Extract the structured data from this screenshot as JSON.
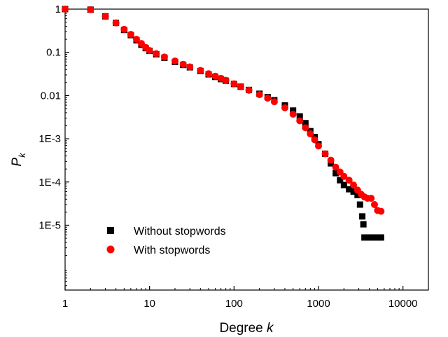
{
  "chart_data": {
    "type": "scatter",
    "title": "",
    "xlabel": "Degree",
    "xlabel_var": "k",
    "ylabel": "P",
    "ylabel_sub": "k",
    "x_scale": "log",
    "y_scale": "log",
    "xlim": [
      1,
      20000
    ],
    "ylim": [
      3.16e-07,
      1
    ],
    "grid": false,
    "legend_position": "bottom-left",
    "x_ticks": [
      {
        "value": 1,
        "label": "1"
      },
      {
        "value": 10,
        "label": "10"
      },
      {
        "value": 100,
        "label": "100"
      },
      {
        "value": 1000,
        "label": "1000"
      },
      {
        "value": 10000,
        "label": "10000"
      }
    ],
    "y_ticks": [
      {
        "value": 1,
        "label": "1"
      },
      {
        "value": 0.1,
        "label": "0.1"
      },
      {
        "value": 0.01,
        "label": "0.01"
      },
      {
        "value": 0.001,
        "label": "1E-3"
      },
      {
        "value": 0.0001,
        "label": "1E-4"
      },
      {
        "value": 1e-05,
        "label": "1E-5"
      }
    ],
    "series": [
      {
        "name": "Without stopwords",
        "marker": "square",
        "color": "#000000",
        "points": [
          [
            1,
            1.0
          ],
          [
            2,
            0.97
          ],
          [
            3,
            0.68
          ],
          [
            4,
            0.48
          ],
          [
            5,
            0.33
          ],
          [
            6,
            0.25
          ],
          [
            7,
            0.19
          ],
          [
            8,
            0.15
          ],
          [
            9,
            0.125
          ],
          [
            10,
            0.108
          ],
          [
            12,
            0.09
          ],
          [
            15,
            0.075
          ],
          [
            20,
            0.06
          ],
          [
            25,
            0.051
          ],
          [
            30,
            0.045
          ],
          [
            40,
            0.037
          ],
          [
            50,
            0.031
          ],
          [
            60,
            0.027
          ],
          [
            70,
            0.024
          ],
          [
            80,
            0.022
          ],
          [
            100,
            0.0185
          ],
          [
            120,
            0.016
          ],
          [
            150,
            0.0135
          ],
          [
            200,
            0.011
          ],
          [
            250,
            0.0092
          ],
          [
            300,
            0.0078
          ],
          [
            400,
            0.0059
          ],
          [
            500,
            0.0045
          ],
          [
            600,
            0.0033
          ],
          [
            700,
            0.0023
          ],
          [
            800,
            0.0015
          ],
          [
            900,
            0.0011
          ],
          [
            1000,
            0.00075
          ],
          [
            1200,
            0.00045
          ],
          [
            1400,
            0.00027
          ],
          [
            1600,
            0.00016
          ],
          [
            1800,
            0.00011
          ],
          [
            2000,
            8.5e-05
          ],
          [
            2300,
            6.8e-05
          ],
          [
            2600,
            6e-05
          ],
          [
            2900,
            5e-05
          ],
          [
            3100,
            3e-05
          ],
          [
            3300,
            1.6e-05
          ],
          [
            3400,
            1.05e-05
          ],
          [
            3500,
            5.2e-06
          ],
          [
            4000,
            5.2e-06
          ],
          [
            4500,
            5.2e-06
          ],
          [
            5000,
            5.2e-06
          ],
          [
            5500,
            5.2e-06
          ]
        ]
      },
      {
        "name": "With stopwords",
        "marker": "circle",
        "color": "#ff0000",
        "points": [
          [
            1,
            1.0
          ],
          [
            2,
            0.97
          ],
          [
            3,
            0.68
          ],
          [
            4,
            0.48
          ],
          [
            5,
            0.34
          ],
          [
            6,
            0.26
          ],
          [
            7,
            0.2
          ],
          [
            8,
            0.16
          ],
          [
            9,
            0.13
          ],
          [
            10,
            0.11
          ],
          [
            12,
            0.093
          ],
          [
            15,
            0.078
          ],
          [
            20,
            0.063
          ],
          [
            25,
            0.053
          ],
          [
            30,
            0.046
          ],
          [
            40,
            0.038
          ],
          [
            50,
            0.032
          ],
          [
            60,
            0.028
          ],
          [
            70,
            0.025
          ],
          [
            80,
            0.0225
          ],
          [
            100,
            0.0187
          ],
          [
            120,
            0.016
          ],
          [
            150,
            0.0133
          ],
          [
            200,
            0.0105
          ],
          [
            250,
            0.0087
          ],
          [
            300,
            0.0072
          ],
          [
            400,
            0.0052
          ],
          [
            500,
            0.0037
          ],
          [
            600,
            0.0026
          ],
          [
            700,
            0.0018
          ],
          [
            800,
            0.0013
          ],
          [
            900,
            0.00095
          ],
          [
            1000,
            0.00068
          ],
          [
            1200,
            0.00045
          ],
          [
            1400,
            0.00032
          ],
          [
            1600,
            0.00022
          ],
          [
            1800,
            0.00017
          ],
          [
            2000,
            0.000135
          ],
          [
            2300,
            0.00011
          ],
          [
            2600,
            8.5e-05
          ],
          [
            2900,
            6.5e-05
          ],
          [
            3200,
            5.2e-05
          ],
          [
            3500,
            4.5e-05
          ],
          [
            3800,
            4.2e-05
          ],
          [
            4200,
            4.2e-05
          ],
          [
            4600,
            3e-05
          ],
          [
            5000,
            2.2e-05
          ],
          [
            5500,
            2.1e-05
          ]
        ]
      }
    ]
  }
}
